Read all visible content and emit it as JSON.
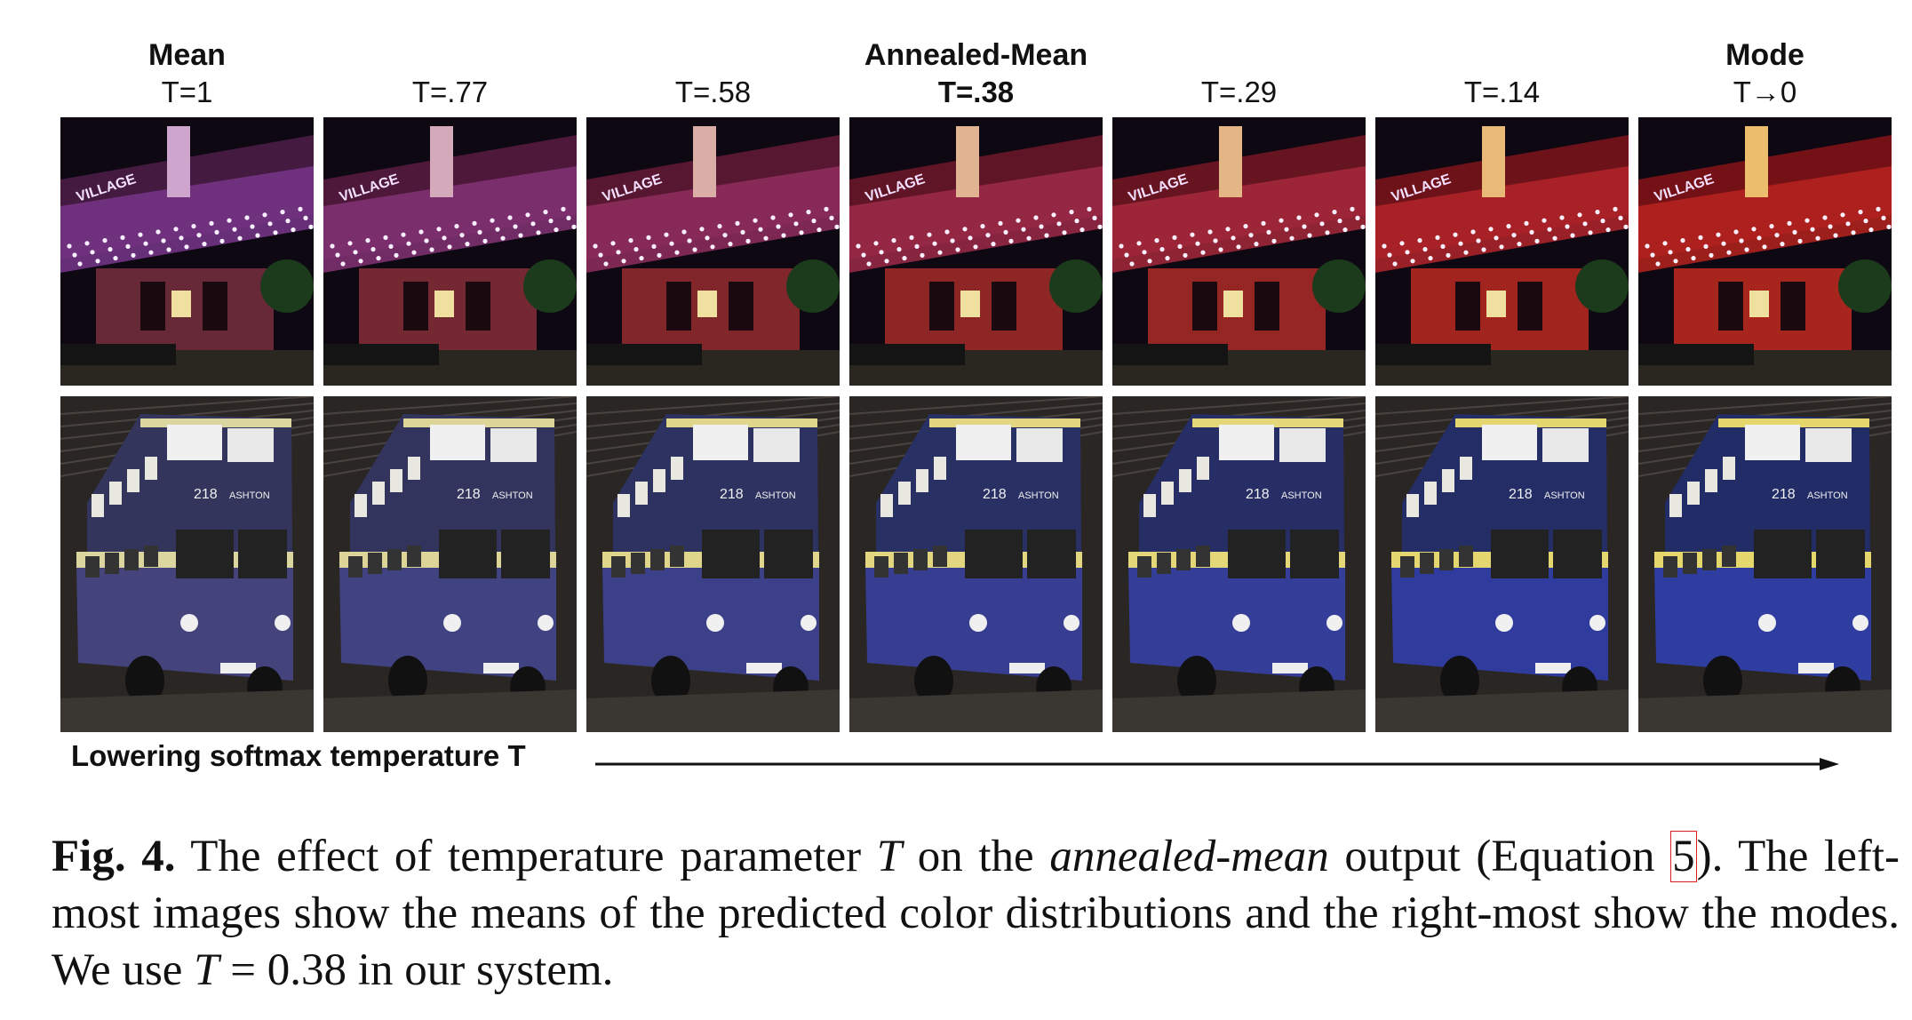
{
  "columns": [
    {
      "top": "Mean",
      "t": "T=1",
      "t_bold": false
    },
    {
      "top": "",
      "t": "T=.77",
      "t_bold": false
    },
    {
      "top": "",
      "t": "T=.58",
      "t_bold": false
    },
    {
      "top": "Annealed-Mean",
      "t": "T=.38",
      "t_bold": true
    },
    {
      "top": "",
      "t": "T=.29",
      "t_bold": false
    },
    {
      "top": "",
      "t": "T=.14",
      "t_bold": false
    },
    {
      "top": "Mode",
      "t": "T→0",
      "t_bold": false
    }
  ],
  "rows": [
    {
      "subject": "theater",
      "bus_plate": "",
      "sign": "VILLAGE"
    },
    {
      "subject": "bus",
      "bus_plate": "218",
      "sign": "ASHTON"
    }
  ],
  "arrow_label": "Lowering softmax temperature T",
  "caption": {
    "fig_label": "Fig. 4.",
    "part1": " The effect of temperature parameter ",
    "var_T": "T",
    "part2": " on the ",
    "italic_phrase": "annealed-mean",
    "part3": " output (Equation ",
    "eq_ref": "5",
    "part4": "). The left-most images show the means of the predicted color distributions and the right-most show the modes. We use ",
    "var_T2": "T",
    "part5": " = 0.38 in our system."
  },
  "colors": {
    "theater_warmth": [
      0.15,
      0.3,
      0.45,
      0.6,
      0.7,
      0.82,
      0.9
    ],
    "bus_saturation": [
      0.2,
      0.3,
      0.45,
      0.6,
      0.7,
      0.8,
      0.85
    ]
  }
}
